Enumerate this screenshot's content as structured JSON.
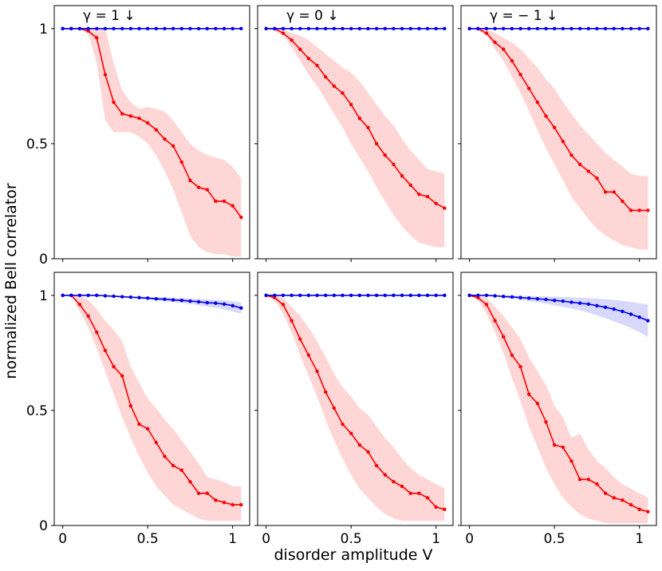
{
  "chart_data": {
    "type": "line",
    "xlabel": "disorder amplitude V",
    "ylabel": "normalized Bell correlator",
    "xlim": [
      -0.05,
      1.1
    ],
    "ylim": [
      0,
      1.1
    ],
    "x_ticks": [
      0,
      0.5,
      1
    ],
    "x_tick_labels": [
      "0",
      "0.5",
      "1"
    ],
    "y_ticks": [
      0,
      0.5,
      1
    ],
    "y_tick_labels": [
      "0",
      "0.5",
      "1"
    ],
    "x": [
      0,
      0.05,
      0.1,
      0.15,
      0.2,
      0.25,
      0.3,
      0.35,
      0.4,
      0.45,
      0.5,
      0.55,
      0.6,
      0.65,
      0.7,
      0.75,
      0.8,
      0.85,
      0.9,
      0.95,
      1.0,
      1.05
    ],
    "series_colors": {
      "red": "#ff0000",
      "blue": "#0000ee"
    },
    "band_colors": {
      "red": "#ffd6d6",
      "blue": "#d8d8fa"
    },
    "panels": [
      {
        "title": "γ = 1 ↓",
        "series": [
          {
            "name": "red",
            "values": [
              1.0,
              1.0,
              1.0,
              0.99,
              0.96,
              0.8,
              0.68,
              0.63,
              0.62,
              0.61,
              0.59,
              0.56,
              0.52,
              0.49,
              0.42,
              0.34,
              0.31,
              0.3,
              0.25,
              0.25,
              0.23,
              0.18
            ],
            "lower": [
              1.0,
              1.0,
              1.0,
              0.98,
              0.85,
              0.6,
              0.55,
              0.55,
              0.55,
              0.53,
              0.5,
              0.45,
              0.38,
              0.3,
              0.2,
              0.1,
              0.05,
              0.03,
              0.02,
              0.02,
              0.01,
              0.01
            ],
            "upper": [
              1.0,
              1.0,
              1.0,
              1.0,
              1.0,
              1.0,
              0.85,
              0.73,
              0.68,
              0.65,
              0.66,
              0.65,
              0.64,
              0.6,
              0.55,
              0.5,
              0.47,
              0.45,
              0.44,
              0.43,
              0.4,
              0.35
            ]
          },
          {
            "name": "blue",
            "values": [
              1.0,
              1.0,
              1.0,
              1.0,
              1.0,
              1.0,
              1.0,
              1.0,
              1.0,
              1.0,
              1.0,
              1.0,
              1.0,
              1.0,
              1.0,
              1.0,
              1.0,
              1.0,
              1.0,
              1.0,
              1.0,
              1.0
            ],
            "lower": [
              1.0,
              1.0,
              1.0,
              1.0,
              1.0,
              1.0,
              1.0,
              1.0,
              1.0,
              1.0,
              1.0,
              1.0,
              1.0,
              1.0,
              1.0,
              1.0,
              1.0,
              1.0,
              1.0,
              1.0,
              1.0,
              1.0
            ],
            "upper": [
              1.0,
              1.0,
              1.0,
              1.0,
              1.0,
              1.0,
              1.0,
              1.0,
              1.0,
              1.0,
              1.0,
              1.0,
              1.0,
              1.0,
              1.0,
              1.0,
              1.0,
              1.0,
              1.0,
              1.0,
              1.0,
              1.0
            ]
          }
        ]
      },
      {
        "title": "γ = 0 ↓",
        "series": [
          {
            "name": "red",
            "values": [
              1.0,
              1.0,
              0.98,
              0.95,
              0.91,
              0.87,
              0.84,
              0.79,
              0.75,
              0.72,
              0.67,
              0.61,
              0.57,
              0.5,
              0.45,
              0.41,
              0.36,
              0.32,
              0.28,
              0.27,
              0.24,
              0.22
            ],
            "lower": [
              1.0,
              0.99,
              0.97,
              0.92,
              0.86,
              0.8,
              0.75,
              0.69,
              0.63,
              0.57,
              0.5,
              0.44,
              0.38,
              0.31,
              0.25,
              0.19,
              0.14,
              0.1,
              0.07,
              0.06,
              0.05,
              0.05
            ],
            "upper": [
              1.0,
              1.0,
              1.0,
              0.98,
              0.97,
              0.95,
              0.92,
              0.89,
              0.86,
              0.83,
              0.81,
              0.77,
              0.72,
              0.67,
              0.62,
              0.58,
              0.52,
              0.47,
              0.43,
              0.39,
              0.38,
              0.37
            ]
          },
          {
            "name": "blue",
            "values": [
              1.0,
              1.0,
              1.0,
              1.0,
              1.0,
              1.0,
              1.0,
              1.0,
              1.0,
              1.0,
              1.0,
              1.0,
              1.0,
              1.0,
              1.0,
              1.0,
              1.0,
              1.0,
              1.0,
              1.0,
              1.0,
              1.0
            ],
            "lower": [
              1.0,
              1.0,
              1.0,
              1.0,
              1.0,
              1.0,
              1.0,
              1.0,
              1.0,
              1.0,
              1.0,
              1.0,
              1.0,
              1.0,
              1.0,
              1.0,
              1.0,
              1.0,
              1.0,
              1.0,
              1.0,
              1.0
            ],
            "upper": [
              1.0,
              1.0,
              1.0,
              1.0,
              1.0,
              1.0,
              1.0,
              1.0,
              1.0,
              1.0,
              1.0,
              1.0,
              1.0,
              1.0,
              1.0,
              1.0,
              1.0,
              1.0,
              1.0,
              1.0,
              1.0,
              1.0
            ]
          }
        ]
      },
      {
        "title": "γ = − 1 ↓",
        "series": [
          {
            "name": "red",
            "values": [
              1.0,
              1.0,
              0.98,
              0.94,
              0.91,
              0.86,
              0.8,
              0.74,
              0.68,
              0.62,
              0.57,
              0.51,
              0.45,
              0.41,
              0.38,
              0.35,
              0.29,
              0.29,
              0.25,
              0.21,
              0.21,
              0.21
            ],
            "lower": [
              1.0,
              0.99,
              0.97,
              0.91,
              0.86,
              0.79,
              0.72,
              0.64,
              0.56,
              0.48,
              0.41,
              0.34,
              0.27,
              0.22,
              0.17,
              0.13,
              0.1,
              0.08,
              0.06,
              0.05,
              0.04,
              0.04
            ],
            "upper": [
              1.0,
              1.0,
              1.0,
              0.98,
              0.96,
              0.94,
              0.91,
              0.87,
              0.83,
              0.78,
              0.74,
              0.68,
              0.63,
              0.58,
              0.54,
              0.5,
              0.46,
              0.43,
              0.4,
              0.37,
              0.36,
              0.36
            ]
          },
          {
            "name": "blue",
            "values": [
              1.0,
              1.0,
              1.0,
              1.0,
              1.0,
              1.0,
              1.0,
              1.0,
              1.0,
              1.0,
              1.0,
              1.0,
              1.0,
              1.0,
              1.0,
              1.0,
              1.0,
              1.0,
              1.0,
              1.0,
              1.0,
              1.0
            ],
            "lower": [
              1.0,
              1.0,
              1.0,
              1.0,
              1.0,
              1.0,
              1.0,
              1.0,
              1.0,
              1.0,
              1.0,
              1.0,
              1.0,
              1.0,
              1.0,
              1.0,
              1.0,
              1.0,
              1.0,
              1.0,
              1.0,
              1.0
            ],
            "upper": [
              1.0,
              1.0,
              1.0,
              1.0,
              1.0,
              1.0,
              1.0,
              1.0,
              1.0,
              1.0,
              1.0,
              1.0,
              1.0,
              1.0,
              1.0,
              1.0,
              1.0,
              1.0,
              1.0,
              1.0,
              1.0,
              1.0
            ]
          }
        ]
      },
      {
        "title": "",
        "series": [
          {
            "name": "red",
            "values": [
              1.0,
              1.0,
              0.96,
              0.91,
              0.84,
              0.76,
              0.69,
              0.65,
              0.52,
              0.44,
              0.42,
              0.36,
              0.3,
              0.26,
              0.24,
              0.19,
              0.14,
              0.14,
              0.11,
              0.1,
              0.09,
              0.09
            ],
            "lower": [
              1.0,
              1.0,
              0.93,
              0.86,
              0.77,
              0.67,
              0.57,
              0.47,
              0.38,
              0.3,
              0.23,
              0.17,
              0.13,
              0.09,
              0.07,
              0.05,
              0.03,
              0.02,
              0.02,
              0.02,
              0.02,
              0.02
            ],
            "upper": [
              1.0,
              1.0,
              1.0,
              0.98,
              0.94,
              0.89,
              0.85,
              0.8,
              0.69,
              0.62,
              0.55,
              0.51,
              0.46,
              0.42,
              0.37,
              0.32,
              0.27,
              0.21,
              0.2,
              0.19,
              0.17,
              0.17
            ]
          },
          {
            "name": "blue",
            "values": [
              1.0,
              1.0,
              1.0,
              1.0,
              1.0,
              0.998,
              0.996,
              0.994,
              0.992,
              0.99,
              0.988,
              0.985,
              0.983,
              0.98,
              0.978,
              0.975,
              0.972,
              0.968,
              0.966,
              0.962,
              0.955,
              0.945
            ],
            "lower": [
              1.0,
              1.0,
              1.0,
              1.0,
              1.0,
              0.997,
              0.994,
              0.991,
              0.988,
              0.985,
              0.982,
              0.978,
              0.975,
              0.971,
              0.967,
              0.962,
              0.957,
              0.951,
              0.946,
              0.939,
              0.93,
              0.92
            ],
            "upper": [
              1.0,
              1.0,
              1.0,
              1.0,
              1.0,
              0.999,
              0.998,
              0.997,
              0.996,
              0.995,
              0.994,
              0.992,
              0.991,
              0.989,
              0.988,
              0.986,
              0.984,
              0.982,
              0.98,
              0.978,
              0.974,
              0.968
            ]
          }
        ]
      },
      {
        "title": "",
        "series": [
          {
            "name": "red",
            "values": [
              1.0,
              0.99,
              0.96,
              0.89,
              0.81,
              0.74,
              0.67,
              0.58,
              0.51,
              0.44,
              0.4,
              0.35,
              0.32,
              0.26,
              0.22,
              0.19,
              0.17,
              0.14,
              0.14,
              0.12,
              0.08,
              0.07
            ],
            "lower": [
              1.0,
              0.98,
              0.92,
              0.84,
              0.74,
              0.65,
              0.56,
              0.46,
              0.37,
              0.29,
              0.22,
              0.16,
              0.12,
              0.08,
              0.05,
              0.03,
              0.02,
              0.02,
              0.02,
              0.02,
              0.02,
              0.02
            ],
            "upper": [
              1.0,
              1.0,
              0.99,
              0.95,
              0.91,
              0.86,
              0.8,
              0.73,
              0.66,
              0.6,
              0.56,
              0.51,
              0.48,
              0.43,
              0.38,
              0.34,
              0.29,
              0.25,
              0.22,
              0.2,
              0.18,
              0.16
            ]
          },
          {
            "name": "blue",
            "values": [
              1.0,
              1.0,
              1.0,
              1.0,
              1.0,
              1.0,
              1.0,
              1.0,
              1.0,
              1.0,
              1.0,
              1.0,
              1.0,
              1.0,
              1.0,
              1.0,
              1.0,
              1.0,
              1.0,
              1.0,
              1.0,
              1.0
            ],
            "lower": [
              1.0,
              1.0,
              1.0,
              1.0,
              1.0,
              1.0,
              1.0,
              1.0,
              1.0,
              1.0,
              1.0,
              1.0,
              1.0,
              1.0,
              1.0,
              1.0,
              1.0,
              1.0,
              1.0,
              1.0,
              1.0,
              1.0
            ],
            "upper": [
              1.0,
              1.0,
              1.0,
              1.0,
              1.0,
              1.0,
              1.0,
              1.0,
              1.0,
              1.0,
              1.0,
              1.0,
              1.0,
              1.0,
              1.0,
              1.0,
              1.0,
              1.0,
              1.0,
              1.0,
              1.0,
              1.0
            ]
          }
        ]
      },
      {
        "title": "",
        "series": [
          {
            "name": "red",
            "values": [
              1.0,
              0.99,
              0.96,
              0.89,
              0.82,
              0.74,
              0.69,
              0.57,
              0.53,
              0.45,
              0.35,
              0.34,
              0.28,
              0.2,
              0.2,
              0.18,
              0.14,
              0.12,
              0.11,
              0.09,
              0.07,
              0.06
            ],
            "lower": [
              1.0,
              0.98,
              0.92,
              0.84,
              0.75,
              0.64,
              0.54,
              0.43,
              0.34,
              0.25,
              0.18,
              0.12,
              0.08,
              0.05,
              0.03,
              0.02,
              0.01,
              0.01,
              0.01,
              0.01,
              0.01,
              0.01
            ],
            "upper": [
              1.0,
              1.0,
              0.99,
              0.95,
              0.91,
              0.86,
              0.81,
              0.73,
              0.67,
              0.61,
              0.52,
              0.47,
              0.38,
              0.4,
              0.33,
              0.28,
              0.25,
              0.21,
              0.18,
              0.16,
              0.14,
              0.12
            ]
          },
          {
            "name": "blue",
            "values": [
              1.0,
              1.0,
              1.0,
              0.998,
              0.995,
              0.993,
              0.99,
              0.988,
              0.985,
              0.982,
              0.978,
              0.975,
              0.97,
              0.966,
              0.962,
              0.955,
              0.948,
              0.94,
              0.93,
              0.918,
              0.905,
              0.89
            ],
            "lower": [
              1.0,
              1.0,
              1.0,
              0.996,
              0.99,
              0.986,
              0.98,
              0.975,
              0.97,
              0.964,
              0.957,
              0.95,
              0.943,
              0.935,
              0.925,
              0.913,
              0.9,
              0.887,
              0.873,
              0.858,
              0.84,
              0.82
            ],
            "upper": [
              1.0,
              1.0,
              1.0,
              1.0,
              1.0,
              0.999,
              0.998,
              0.997,
              0.996,
              0.995,
              0.994,
              0.993,
              0.991,
              0.99,
              0.988,
              0.986,
              0.983,
              0.98,
              0.976,
              0.972,
              0.966,
              0.96
            ]
          }
        ]
      }
    ]
  }
}
